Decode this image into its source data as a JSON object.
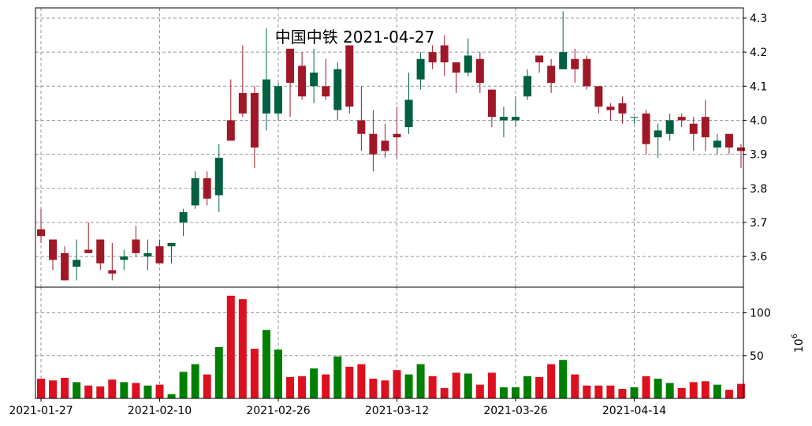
{
  "chart_data": {
    "type": "candlestick",
    "title": "中国中铁 2021-04-27",
    "colors": {
      "up": "#006040",
      "down": "#a01828",
      "vol_up": "#008000",
      "vol_down": "#dd1020",
      "grid": "#999999"
    },
    "grid": true,
    "price_axis": {
      "position": "right",
      "ylim": [
        3.51,
        4.33
      ],
      "ticks": [
        "3.6",
        "3.7",
        "3.8",
        "3.9",
        "4.0",
        "4.1",
        "4.2",
        "4.3"
      ]
    },
    "volume_axis": {
      "position": "right",
      "ylim": [
        0,
        130
      ],
      "ticks": [
        "50",
        "100"
      ],
      "unit_base": "10",
      "unit_exp": "6"
    },
    "x_ticks": [
      {
        "label": "2021-01-27",
        "index": 0
      },
      {
        "label": "2021-02-10",
        "index": 10
      },
      {
        "label": "2021-02-26",
        "index": 20
      },
      {
        "label": "2021-03-12",
        "index": 30
      },
      {
        "label": "2021-03-26",
        "index": 40
      },
      {
        "label": "2021-04-14",
        "index": 50
      }
    ],
    "ohlc": [
      [
        3.68,
        3.74,
        3.64,
        3.66
      ],
      [
        3.65,
        3.65,
        3.56,
        3.59
      ],
      [
        3.61,
        3.63,
        3.53,
        3.53
      ],
      [
        3.57,
        3.65,
        3.53,
        3.59
      ],
      [
        3.62,
        3.7,
        3.61,
        3.61
      ],
      [
        3.65,
        3.65,
        3.56,
        3.58
      ],
      [
        3.56,
        3.64,
        3.53,
        3.55
      ],
      [
        3.59,
        3.62,
        3.56,
        3.6
      ],
      [
        3.65,
        3.69,
        3.6,
        3.61
      ],
      [
        3.6,
        3.65,
        3.56,
        3.61
      ],
      [
        3.63,
        3.65,
        3.58,
        3.58
      ],
      [
        3.63,
        3.64,
        3.58,
        3.64
      ],
      [
        3.7,
        3.74,
        3.66,
        3.73
      ],
      [
        3.75,
        3.85,
        3.74,
        3.83
      ],
      [
        3.83,
        3.85,
        3.75,
        3.77
      ],
      [
        3.78,
        3.93,
        3.73,
        3.89
      ],
      [
        4.0,
        4.12,
        3.94,
        3.94
      ],
      [
        4.08,
        4.22,
        4.01,
        4.02
      ],
      [
        4.08,
        4.1,
        3.86,
        3.92
      ],
      [
        4.02,
        4.27,
        3.97,
        4.12
      ],
      [
        4.02,
        4.11,
        4.0,
        4.1
      ],
      [
        4.21,
        4.21,
        4.01,
        4.11
      ],
      [
        4.16,
        4.2,
        4.06,
        4.07
      ],
      [
        4.1,
        4.21,
        4.05,
        4.14
      ],
      [
        4.1,
        4.18,
        4.06,
        4.07
      ],
      [
        4.03,
        4.17,
        4.0,
        4.15
      ],
      [
        4.22,
        4.22,
        4.02,
        4.04
      ],
      [
        4.0,
        4.1,
        3.91,
        3.96
      ],
      [
        3.96,
        4.03,
        3.85,
        3.9
      ],
      [
        3.94,
        3.99,
        3.89,
        3.91
      ],
      [
        3.96,
        4.04,
        3.89,
        3.95
      ],
      [
        3.98,
        4.14,
        3.96,
        4.06
      ],
      [
        4.12,
        4.2,
        4.09,
        4.18
      ],
      [
        4.2,
        4.22,
        4.15,
        4.17
      ],
      [
        4.22,
        4.25,
        4.13,
        4.17
      ],
      [
        4.17,
        4.17,
        4.08,
        4.14
      ],
      [
        4.14,
        4.24,
        4.13,
        4.19
      ],
      [
        4.18,
        4.2,
        4.08,
        4.11
      ],
      [
        4.09,
        4.09,
        3.98,
        4.01
      ],
      [
        4.0,
        4.04,
        3.95,
        4.01
      ],
      [
        4.0,
        4.07,
        3.98,
        4.01
      ],
      [
        4.07,
        4.15,
        4.06,
        4.13
      ],
      [
        4.19,
        4.19,
        4.14,
        4.17
      ],
      [
        4.16,
        4.18,
        4.08,
        4.11
      ],
      [
        4.15,
        4.32,
        4.15,
        4.2
      ],
      [
        4.18,
        4.21,
        4.11,
        4.15
      ],
      [
        4.18,
        4.19,
        4.09,
        4.1
      ],
      [
        4.1,
        4.1,
        4.02,
        4.04
      ],
      [
        4.04,
        4.05,
        4.0,
        4.03
      ],
      [
        4.05,
        4.07,
        3.99,
        4.02
      ],
      [
        4.01,
        4.01,
        3.99,
        4.01
      ],
      [
        4.02,
        4.03,
        3.9,
        3.93
      ],
      [
        3.95,
        3.99,
        3.89,
        3.97
      ],
      [
        3.96,
        4.02,
        3.94,
        4.0
      ],
      [
        4.01,
        4.02,
        3.98,
        4.0
      ],
      [
        3.99,
        4.01,
        3.91,
        3.96
      ],
      [
        4.01,
        4.06,
        3.91,
        3.95
      ],
      [
        3.92,
        3.96,
        3.9,
        3.94
      ],
      [
        3.96,
        3.96,
        3.9,
        3.92
      ],
      [
        3.92,
        3.93,
        3.86,
        3.91
      ]
    ],
    "volume": [
      23,
      21,
      24,
      19,
      15,
      14,
      22,
      19,
      18,
      15,
      16,
      5,
      31,
      40,
      28,
      60,
      120,
      116,
      58,
      80,
      57,
      25,
      26,
      35,
      28,
      49,
      37,
      40,
      23,
      21,
      33,
      28,
      40,
      26,
      12,
      30,
      29,
      16,
      30,
      13,
      13,
      26,
      25,
      40,
      45,
      28,
      15,
      15,
      15,
      11,
      13,
      26,
      23,
      18,
      12,
      19,
      20,
      16,
      10,
      17
    ]
  }
}
